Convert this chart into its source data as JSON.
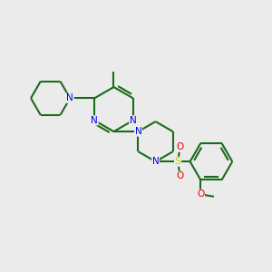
{
  "bg_color": "#ebebeb",
  "bond_color": "#1a6b1a",
  "N_color": "#0000ee",
  "S_color": "#cccc00",
  "O_color": "#ee0000",
  "line_width": 1.5,
  "fig_w": 3.0,
  "fig_h": 3.0,
  "dpi": 100,
  "xlim": [
    0,
    12
  ],
  "ylim": [
    0,
    12
  ]
}
